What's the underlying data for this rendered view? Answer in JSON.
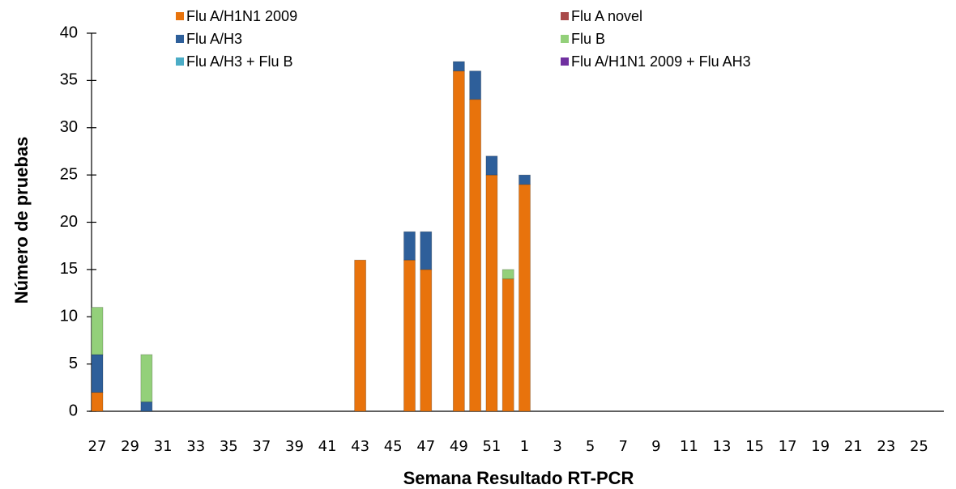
{
  "chart_data": {
    "type": "stacked-bar",
    "x_label": "Semana Resultado RT-PCR",
    "y_label": "Número de pruebas",
    "categories": [
      "27",
      null,
      "29",
      null,
      "31",
      null,
      "33",
      null,
      "35",
      null,
      "37",
      null,
      "39",
      null,
      "41",
      null,
      "43",
      null,
      "45",
      null,
      "47",
      null,
      "49",
      null,
      "51",
      null,
      "1",
      null,
      "3",
      null,
      "5",
      null,
      "7",
      null,
      "9",
      null,
      "11",
      null,
      "13",
      null,
      "15",
      null,
      "17",
      null,
      "19",
      null,
      "21",
      null,
      "23",
      null,
      "25",
      null
    ],
    "series": [
      {
        "name": "Flu A/H1N1 2009",
        "color": "#e8730c",
        "values": [
          2,
          0,
          0,
          0,
          0,
          0,
          0,
          0,
          0,
          0,
          0,
          0,
          0,
          0,
          0,
          0,
          16,
          0,
          0,
          16,
          15,
          0,
          36,
          33,
          25,
          14,
          24,
          0,
          0,
          0,
          0,
          0,
          0,
          0,
          0,
          0,
          0,
          0,
          0,
          0,
          0,
          0,
          0,
          0,
          0,
          0,
          0,
          0,
          0,
          0,
          0,
          0
        ]
      },
      {
        "name": "Flu A novel",
        "color": "#a94a4a",
        "values": [
          0,
          0,
          0,
          0,
          0,
          0,
          0,
          0,
          0,
          0,
          0,
          0,
          0,
          0,
          0,
          0,
          0,
          0,
          0,
          0,
          0,
          0,
          0,
          0,
          0,
          0,
          0,
          0,
          0,
          0,
          0,
          0,
          0,
          0,
          0,
          0,
          0,
          0,
          0,
          0,
          0,
          0,
          0,
          0,
          0,
          0,
          0,
          0,
          0,
          0,
          0,
          0
        ]
      },
      {
        "name": "Flu A/H3",
        "color": "#2e5f9a",
        "values": [
          4,
          0,
          0,
          1,
          0,
          0,
          0,
          0,
          0,
          0,
          0,
          0,
          0,
          0,
          0,
          0,
          0,
          0,
          0,
          3,
          4,
          0,
          1,
          3,
          2,
          0,
          1,
          0,
          0,
          0,
          0,
          0,
          0,
          0,
          0,
          0,
          0,
          0,
          0,
          0,
          0,
          0,
          0,
          0,
          0,
          0,
          0,
          0,
          0,
          0,
          0,
          0
        ]
      },
      {
        "name": "Flu B",
        "color": "#93d07a",
        "values": [
          5,
          0,
          0,
          5,
          0,
          0,
          0,
          0,
          0,
          0,
          0,
          0,
          0,
          0,
          0,
          0,
          0,
          0,
          0,
          0,
          0,
          0,
          0,
          0,
          0,
          1,
          0,
          0,
          0,
          0,
          0,
          0,
          0,
          0,
          0,
          0,
          0,
          0,
          0,
          0,
          0,
          0,
          0,
          0,
          0,
          0,
          0,
          0,
          0,
          0,
          0,
          0
        ]
      },
      {
        "name": "Flu A/H3 + Flu B",
        "color": "#4bacc6",
        "values": [
          0,
          0,
          0,
          0,
          0,
          0,
          0,
          0,
          0,
          0,
          0,
          0,
          0,
          0,
          0,
          0,
          0,
          0,
          0,
          0,
          0,
          0,
          0,
          0,
          0,
          0,
          0,
          0,
          0,
          0,
          0,
          0,
          0,
          0,
          0,
          0,
          0,
          0,
          0,
          0,
          0,
          0,
          0,
          0,
          0,
          0,
          0,
          0,
          0,
          0,
          0,
          0
        ]
      },
      {
        "name": "Flu A/H1N1 2009 + Flu AH3",
        "color": "#7030a0",
        "values": [
          0,
          0,
          0,
          0,
          0,
          0,
          0,
          0,
          0,
          0,
          0,
          0,
          0,
          0,
          0,
          0,
          0,
          0,
          0,
          0,
          0,
          0,
          0,
          0,
          0,
          0,
          0,
          0,
          0,
          0,
          0,
          0,
          0,
          0,
          0,
          0,
          0,
          0,
          0,
          0,
          0,
          0,
          0,
          0,
          0,
          0,
          0,
          0,
          0,
          0,
          0,
          0
        ]
      }
    ],
    "ylim": [
      0,
      40
    ],
    "yticks": [
      0,
      5,
      10,
      15,
      20,
      25,
      30,
      35,
      40
    ]
  }
}
